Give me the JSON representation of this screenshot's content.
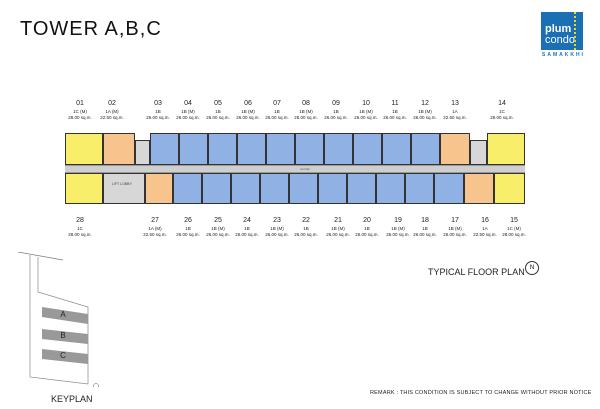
{
  "header": {
    "title": "TOWER A,B,C",
    "logo": {
      "line1": "plum",
      "line2": "condo",
      "sub": "SAMAKKHI",
      "color": "#1b6fb5"
    }
  },
  "plan": {
    "title": "TYPICAL FLOOR PLAN",
    "corridor_label": "corridor",
    "lift_lobby_label": "LIFT LOBBY",
    "north_label": "N",
    "colors": {
      "1A": "#f8c48e",
      "1B": "#8fb1e3",
      "1C": "#f8ee6a",
      "core": "#d7d7d7"
    },
    "top_units": [
      {
        "no": "01",
        "type": "1C (M)",
        "area": "28.00 sq.m."
      },
      {
        "no": "02",
        "type": "1A (M)",
        "area": "22.50 sq.m."
      },
      {
        "no": "03",
        "type": "1B",
        "area": "26.00 sq.m."
      },
      {
        "no": "04",
        "type": "1B (M)",
        "area": "26.00 sq.m."
      },
      {
        "no": "05",
        "type": "1B",
        "area": "26.00 sq.m."
      },
      {
        "no": "06",
        "type": "1B (M)",
        "area": "26.00 sq.m."
      },
      {
        "no": "07",
        "type": "1B",
        "area": "26.00 sq.m."
      },
      {
        "no": "08",
        "type": "1B (M)",
        "area": "26.00 sq.m."
      },
      {
        "no": "09",
        "type": "1B",
        "area": "26.00 sq.m."
      },
      {
        "no": "10",
        "type": "1B (M)",
        "area": "26.00 sq.m."
      },
      {
        "no": "11",
        "type": "1B",
        "area": "26.00 sq.m."
      },
      {
        "no": "12",
        "type": "1B (M)",
        "area": "26.00 sq.m."
      },
      {
        "no": "13",
        "type": "1A",
        "area": "22.50 sq.m."
      },
      {
        "no": "14",
        "type": "1C",
        "area": "28.00 sq.m."
      }
    ],
    "bottom_units": [
      {
        "no": "28",
        "type": "1C",
        "area": "28.00 sq.m."
      },
      {
        "no": "27",
        "type": "1A (M)",
        "area": "22.50 sq.m."
      },
      {
        "no": "26",
        "type": "1B",
        "area": "26.00 sq.m."
      },
      {
        "no": "25",
        "type": "1B (M)",
        "area": "26.00 sq.m."
      },
      {
        "no": "24",
        "type": "1B",
        "area": "26.00 sq.m."
      },
      {
        "no": "23",
        "type": "1B (M)",
        "area": "26.00 sq.m."
      },
      {
        "no": "22",
        "type": "1B",
        "area": "26.00 sq.m."
      },
      {
        "no": "21",
        "type": "1B (M)",
        "area": "26.00 sq.m."
      },
      {
        "no": "20",
        "type": "1B",
        "area": "26.00 sq.m."
      },
      {
        "no": "19",
        "type": "1B (M)",
        "area": "26.00 sq.m."
      },
      {
        "no": "18",
        "type": "1B",
        "area": "26.00 sq.m."
      },
      {
        "no": "17",
        "type": "1B (M)",
        "area": "26.00 sq.m."
      },
      {
        "no": "16",
        "type": "1A",
        "area": "22.50 sq.m."
      },
      {
        "no": "15",
        "type": "1C (M)",
        "area": "28.00 sq.m."
      }
    ]
  },
  "keyplan": {
    "label": "KEYPLAN",
    "buildings": [
      "A",
      "B",
      "C"
    ]
  },
  "remark": "REMARK :  THIS CONDITION IS SUBJECT TO CHANGE WITHOUT PRIOR NOTICE"
}
